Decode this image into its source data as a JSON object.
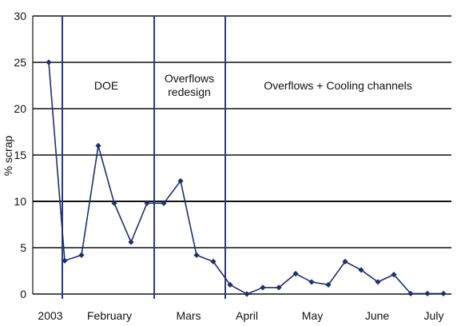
{
  "chart_data": {
    "type": "line",
    "ylabel": "% scrap",
    "ylim": [
      0,
      30
    ],
    "yticks": [
      0,
      5,
      10,
      15,
      20,
      25,
      30
    ],
    "grid": "horizontal",
    "x_tick_labels": [
      "2003",
      "February",
      "Mars",
      "April",
      "May",
      "June",
      "July"
    ],
    "phases": [
      {
        "label": "DOE",
        "lines": [
          "DOE"
        ]
      },
      {
        "label": "Overflows redesign",
        "lines": [
          "Overflows",
          "redesign"
        ]
      },
      {
        "label": "Overflows + Cooling channels",
        "lines": [
          "Overflows + Cooling channels"
        ]
      }
    ],
    "series": [
      {
        "values": [
          25,
          3.6,
          4.2,
          16,
          9.8,
          5.6,
          9.8,
          9.8,
          12.2,
          4.2,
          3.5,
          1.0,
          0.0,
          0.7,
          0.7,
          2.2,
          1.3,
          1.0,
          3.5,
          2.6,
          1.3,
          2.1,
          0.05,
          0.05,
          0.05
        ],
        "color": "#1f2f6e"
      }
    ],
    "phase_line_color": "#2a3a8c"
  }
}
